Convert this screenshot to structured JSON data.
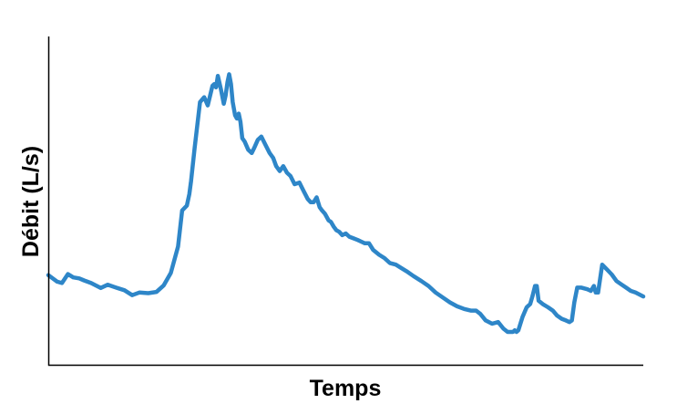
{
  "chart_data": {
    "type": "line",
    "title": "",
    "xlabel": "Temps",
    "ylabel": "Débit (L/s)",
    "xlim": [
      0,
      100
    ],
    "ylim": [
      0,
      100
    ],
    "grid": false,
    "legend": "none",
    "ticks": false,
    "series": [
      {
        "color": "#2e86c8",
        "x": [
          0,
          1.5,
          2.3,
          3.3,
          4.2,
          5.2,
          6.0,
          7.2,
          8.8,
          10.0,
          11.4,
          12.8,
          14.1,
          15.3,
          16.8,
          18.2,
          19.4,
          20.6,
          21.8,
          22.5,
          23.3,
          23.7,
          24.0,
          24.6,
          25.5,
          26.2,
          26.8,
          27.2,
          27.6,
          27.9,
          28.2,
          28.5,
          29.0,
          29.5,
          29.8,
          30.1,
          30.4,
          30.7,
          31.0,
          31.4,
          31.7,
          32.0,
          32.3,
          32.6,
          33.0,
          33.6,
          34.2,
          34.6,
          35.2,
          35.8,
          36.5,
          37.2,
          37.8,
          38.3,
          38.9,
          39.5,
          40.1,
          40.7,
          41.4,
          42.2,
          42.9,
          43.6,
          44.1,
          44.6,
          45.1,
          45.6,
          46.0,
          46.5,
          47.1,
          47.5,
          48.0,
          48.4,
          48.9,
          49.4,
          50.0,
          50.6,
          51.3,
          52.0,
          52.6,
          53.2,
          53.9,
          54.6,
          55.6,
          56.5,
          57.4,
          58.4,
          59.3,
          60.2,
          61.4,
          62.7,
          63.9,
          65.1,
          66.3,
          67.5,
          68.7,
          69.9,
          71.0,
          71.9,
          72.6,
          73.5,
          74.6,
          75.6,
          76.5,
          77.2,
          77.8,
          78.1,
          78.4,
          78.7,
          79.0,
          79.7,
          80.4,
          81.0,
          81.4,
          81.8,
          82.1,
          82.4,
          83.1,
          84.0,
          84.8,
          85.5,
          86.3,
          87.0,
          87.6,
          88.0,
          88.4,
          88.9,
          89.6,
          90.6,
          91.2,
          91.7,
          92.0,
          92.4,
          93.1,
          93.9,
          94.7,
          95.5,
          96.3,
          97.1,
          97.9,
          98.7,
          100
        ],
        "y": [
          27.3,
          25.3,
          24.9,
          27.6,
          26.6,
          26.3,
          25.7,
          24.9,
          23.4,
          24.4,
          23.5,
          22.7,
          21.2,
          22.0,
          21.8,
          22.2,
          24.2,
          28.0,
          36.0,
          47.0,
          48.5,
          52.0,
          56.0,
          66.0,
          80.0,
          81.5,
          79.0,
          82.0,
          85.0,
          85.5,
          84.5,
          88.0,
          84.0,
          79.5,
          82.0,
          86.0,
          88.5,
          85.5,
          80.0,
          76.0,
          75.0,
          76.5,
          74.0,
          69.0,
          68.0,
          65.5,
          64.5,
          66.0,
          68.5,
          69.5,
          67.0,
          64.5,
          63.0,
          60.5,
          59.0,
          60.5,
          58.5,
          57.5,
          55.0,
          55.5,
          53.0,
          50.5,
          49.5,
          49.5,
          51.0,
          48.0,
          47.0,
          46.0,
          44.0,
          43.5,
          42.0,
          41.0,
          40.5,
          39.5,
          40.0,
          39.0,
          38.5,
          38.0,
          37.5,
          37.0,
          37.0,
          35.0,
          33.5,
          32.5,
          31.0,
          30.5,
          29.5,
          28.5,
          27.0,
          25.5,
          24.0,
          22.0,
          20.5,
          19.0,
          17.8,
          17.0,
          16.5,
          16.5,
          15.5,
          13.5,
          12.5,
          13.0,
          11.0,
          10.0,
          10.0,
          10.0,
          10.5,
          10.0,
          10.5,
          14.5,
          17.5,
          18.5,
          21.0,
          24.0,
          24.0,
          19.5,
          18.5,
          17.5,
          16.5,
          15.0,
          14.0,
          13.5,
          13.0,
          13.5,
          19.0,
          23.5,
          23.5,
          23.0,
          22.5,
          24.0,
          22.0,
          22.0,
          30.5,
          29.0,
          27.5,
          25.5,
          24.5,
          23.5,
          22.5,
          22.0,
          20.8
        ]
      }
    ]
  }
}
